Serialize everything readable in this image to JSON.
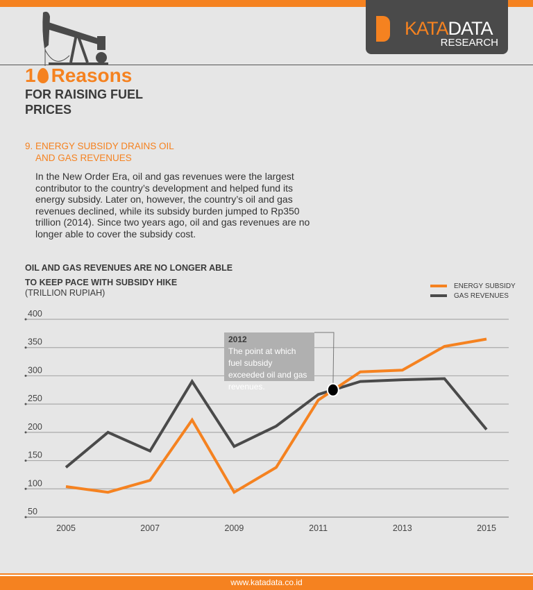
{
  "header": {
    "logo_text_a": "KATA",
    "logo_text_b": "DATA",
    "logo_sub": "RESEARCH",
    "title_prefix": "1",
    "title_main": "Reasons",
    "subtitle": "FOR RAISING FUEL PRICES"
  },
  "section": {
    "heading_line1": "9. ENERGY SUBSIDY DRAINS OIL",
    "heading_line2": "AND GAS REVENUES",
    "body": "In the New Order Era, oil and gas revenues were the largest contributor to the country’s development and helped fund its energy subsidy. Later on, however, the country’s oil and gas revenues declined, while its subsidy burden jumped to Rp350 trillion (2014). Since two years ago, oil and gas revenues are no longer able to cover the subsidy cost."
  },
  "colors": {
    "accent": "#f58220",
    "dark": "#4a4a4a"
  },
  "chart_data": {
    "type": "line",
    "title": "OIL AND GAS REVENUES ARE NO LONGER ABLE TO KEEP PACE WITH SUBSIDY HIKE",
    "title_line1": "OIL AND GAS REVENUES ARE NO LONGER ABLE",
    "title_line2": "TO KEEP PACE WITH SUBSIDY HIKE",
    "ylabel": "(TRILLION RUPIAH)",
    "x": [
      2005,
      2006,
      2007,
      2008,
      2009,
      2010,
      2011,
      2012,
      2013,
      2014,
      2015
    ],
    "xticks": [
      "2005",
      "2007",
      "2009",
      "2011",
      "2013",
      "2015"
    ],
    "yticks": [
      "50",
      "100",
      "150",
      "200",
      "250",
      "300",
      "350",
      "400"
    ],
    "ylim": [
      50,
      400
    ],
    "grid": true,
    "legend": "top-right",
    "series": [
      {
        "name": "ENERGY SUBSIDY",
        "color": "#f58220",
        "values": [
          104,
          94,
          115,
          222,
          94,
          138,
          257,
          307,
          310,
          352,
          365
        ]
      },
      {
        "name": "GAS REVENUES",
        "color": "#4a4a4a",
        "values": [
          138,
          200,
          167,
          290,
          175,
          211,
          267,
          290,
          293,
          295,
          205
        ]
      }
    ],
    "annotation": {
      "year_label": "2012",
      "text": "The point at which fuel subsidy exceeded oil and gas revenues.",
      "x": 2011.35,
      "y": 275
    }
  },
  "footer": {
    "url": "www.katadata.co.id"
  }
}
